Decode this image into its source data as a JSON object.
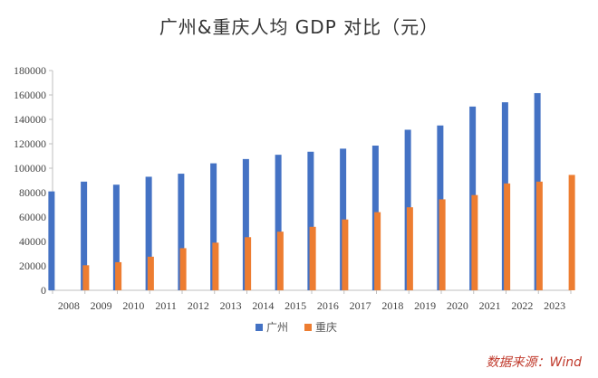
{
  "chart_data": {
    "type": "bar",
    "title": "广州&重庆人均 GDP 对比（元）",
    "xlabel": "",
    "ylabel": "",
    "categories": [
      "2008",
      "2009",
      "2010",
      "2011",
      "2012",
      "2013",
      "2014",
      "2015",
      "2016",
      "2017",
      "2018",
      "2019",
      "2020",
      "2021",
      "2022",
      "2023"
    ],
    "series": [
      {
        "name": "广州",
        "color": "#4472c4",
        "values": [
          81000,
          89000,
          86500,
          93000,
          95500,
          104000,
          107500,
          111000,
          113500,
          116000,
          118500,
          131500,
          135000,
          150500,
          154000,
          161500
        ]
      },
      {
        "name": "重庆",
        "color": "#ed7d31",
        "values": [
          20500,
          23000,
          27500,
          34500,
          39000,
          43500,
          48000,
          52000,
          58000,
          64000,
          68000,
          74500,
          78000,
          87500,
          89000,
          94500
        ]
      }
    ],
    "ylim": [
      0,
      180000
    ],
    "yticks": [
      "0",
      "20000",
      "40000",
      "60000",
      "80000",
      "100000",
      "120000",
      "140000",
      "160000",
      "180000"
    ],
    "grid": false,
    "legend": "bottom-center"
  },
  "source_note": "数据来源：Wind"
}
